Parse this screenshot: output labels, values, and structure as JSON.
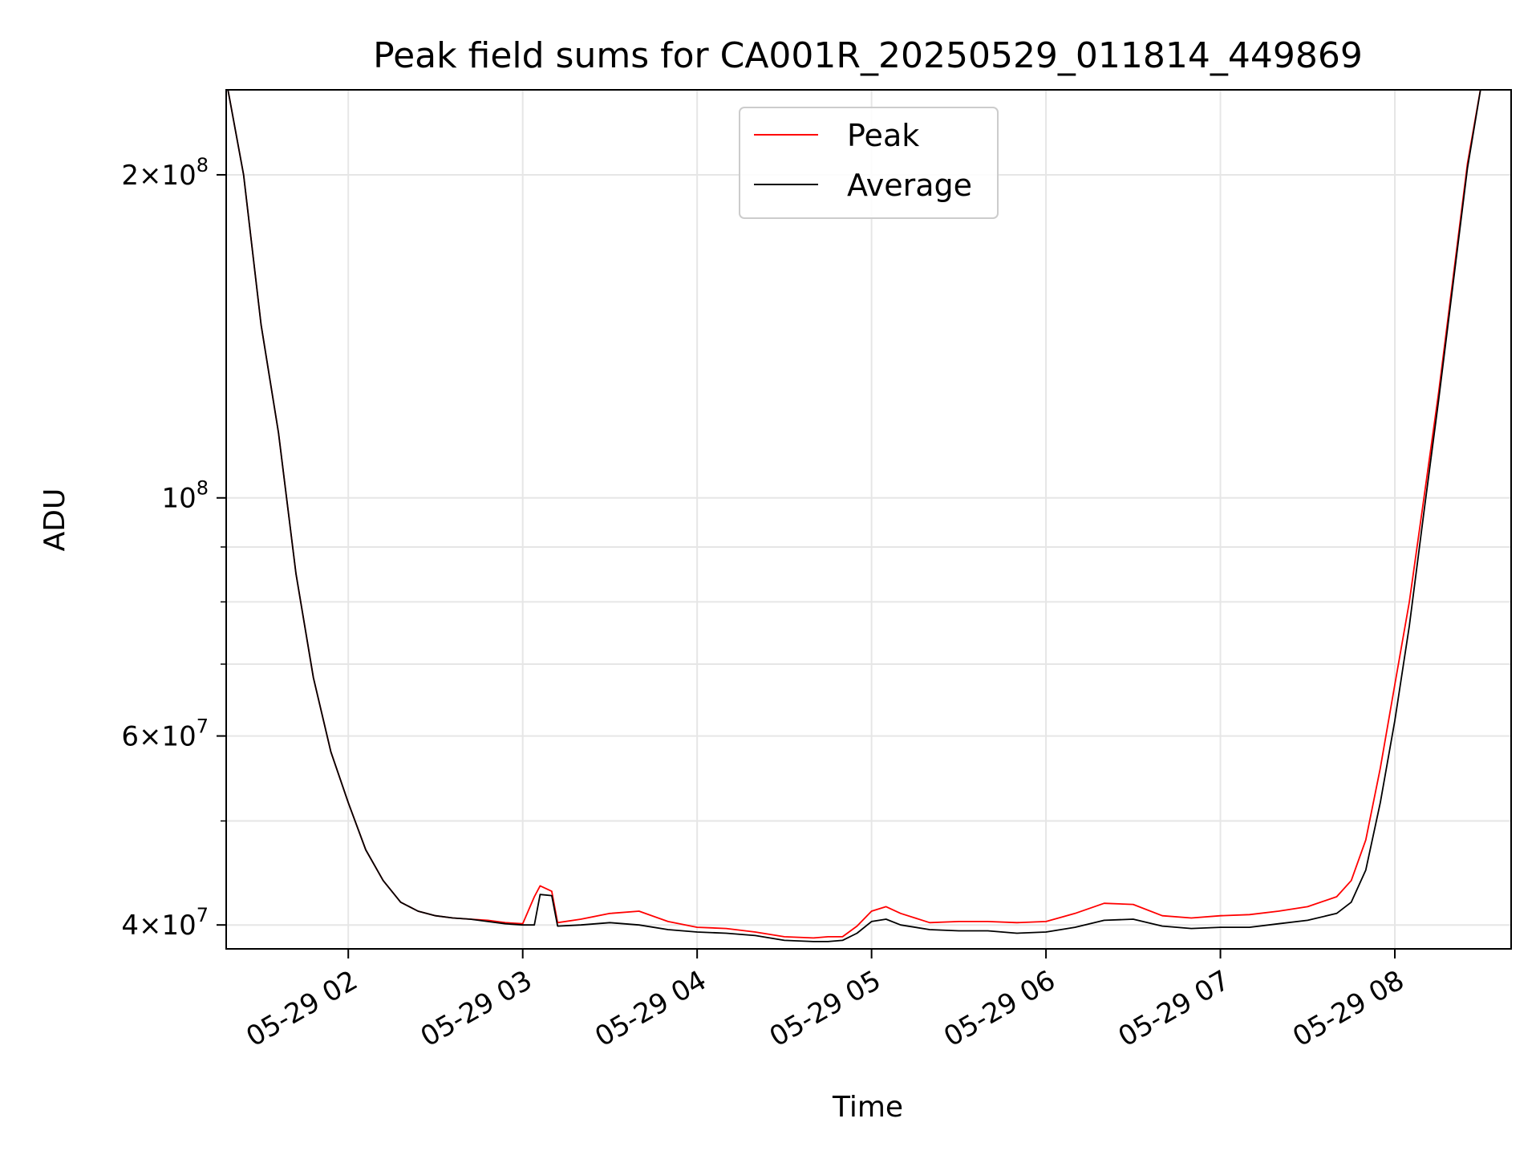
{
  "chart_data": {
    "type": "line",
    "title": "Peak field sums for CA001R_20250529_011814_449869",
    "xlabel": "Time",
    "ylabel": "ADU",
    "x_ticks": [
      "05-29 02",
      "05-29 03",
      "05-29 04",
      "05-29 05",
      "05-29 06",
      "05-29 07",
      "05-29 08"
    ],
    "y_ticks": [
      {
        "value": 40000000,
        "mantissa": "4",
        "exp": "7"
      },
      {
        "value": 60000000,
        "mantissa": "6",
        "exp": "7"
      },
      {
        "value": 100000000,
        "mantissa": "",
        "exp": "8"
      },
      {
        "value": 200000000,
        "mantissa": "2",
        "exp": "8"
      }
    ],
    "y_scale": "log",
    "ylim": [
      38000000,
      240000000
    ],
    "xlim": [
      "2025-05-29 01:18",
      "2025-05-29 08:40"
    ],
    "grid": true,
    "legend_position": "top-center",
    "series": [
      {
        "name": "Peak",
        "color": "#ff0000",
        "x": [
          "01:18",
          "01:24",
          "01:30",
          "01:36",
          "01:42",
          "01:48",
          "01:54",
          "02:00",
          "02:06",
          "02:12",
          "02:18",
          "02:24",
          "02:30",
          "02:36",
          "02:42",
          "02:48",
          "02:54",
          "03:00",
          "03:04",
          "03:06",
          "03:10",
          "03:12",
          "03:20",
          "03:30",
          "03:40",
          "03:50",
          "04:00",
          "04:10",
          "04:20",
          "04:30",
          "04:40",
          "04:45",
          "04:50",
          "04:55",
          "05:00",
          "05:05",
          "05:10",
          "05:20",
          "05:30",
          "05:40",
          "05:50",
          "06:00",
          "06:10",
          "06:20",
          "06:30",
          "06:40",
          "06:50",
          "07:00",
          "07:10",
          "07:20",
          "07:30",
          "07:40",
          "07:45",
          "07:50",
          "07:55",
          "08:00",
          "08:05",
          "08:10",
          "08:15",
          "08:20",
          "08:25",
          "08:30",
          "08:40"
        ],
        "values": [
          245000000,
          200000000,
          145000000,
          115000000,
          85000000,
          68000000,
          58000000,
          52000000,
          47000000,
          44000000,
          42000000,
          41200000,
          40800000,
          40600000,
          40500000,
          40400000,
          40200000,
          40100000,
          42500000,
          43500000,
          43000000,
          40200000,
          40500000,
          41000000,
          41200000,
          40300000,
          39800000,
          39700000,
          39400000,
          39000000,
          38900000,
          39000000,
          39000000,
          39900000,
          41200000,
          41600000,
          41000000,
          40200000,
          40300000,
          40300000,
          40200000,
          40300000,
          41000000,
          41900000,
          41800000,
          40800000,
          40600000,
          40800000,
          40900000,
          41200000,
          41600000,
          42500000,
          44000000,
          48000000,
          56000000,
          67000000,
          80000000,
          100000000,
          125000000,
          160000000,
          205000000,
          245000000,
          245000000
        ]
      },
      {
        "name": "Average",
        "color": "#000000",
        "x": [
          "01:18",
          "01:24",
          "01:30",
          "01:36",
          "01:42",
          "01:48",
          "01:54",
          "02:00",
          "02:06",
          "02:12",
          "02:18",
          "02:24",
          "02:30",
          "02:36",
          "02:42",
          "02:48",
          "02:54",
          "03:00",
          "03:04",
          "03:06",
          "03:10",
          "03:12",
          "03:20",
          "03:30",
          "03:40",
          "03:50",
          "04:00",
          "04:10",
          "04:20",
          "04:30",
          "04:40",
          "04:45",
          "04:50",
          "04:55",
          "05:00",
          "05:05",
          "05:10",
          "05:20",
          "05:30",
          "05:40",
          "05:50",
          "06:00",
          "06:10",
          "06:20",
          "06:30",
          "06:40",
          "06:50",
          "07:00",
          "07:10",
          "07:20",
          "07:30",
          "07:40",
          "07:45",
          "07:50",
          "07:55",
          "08:00",
          "08:05",
          "08:10",
          "08:15",
          "08:20",
          "08:25",
          "08:30",
          "08:40"
        ],
        "values": [
          245000000,
          200000000,
          145000000,
          115000000,
          85000000,
          68000000,
          58000000,
          52000000,
          47000000,
          44000000,
          42000000,
          41200000,
          40800000,
          40600000,
          40500000,
          40300000,
          40100000,
          40000000,
          40000000,
          42700000,
          42600000,
          39900000,
          40000000,
          40200000,
          40000000,
          39600000,
          39400000,
          39300000,
          39100000,
          38700000,
          38600000,
          38600000,
          38700000,
          39300000,
          40300000,
          40500000,
          40000000,
          39600000,
          39500000,
          39500000,
          39300000,
          39400000,
          39800000,
          40400000,
          40500000,
          39900000,
          39700000,
          39800000,
          39800000,
          40100000,
          40400000,
          41000000,
          42000000,
          45000000,
          52000000,
          62000000,
          76000000,
          97000000,
          123000000,
          158000000,
          203000000,
          245000000,
          245000000
        ]
      }
    ]
  }
}
